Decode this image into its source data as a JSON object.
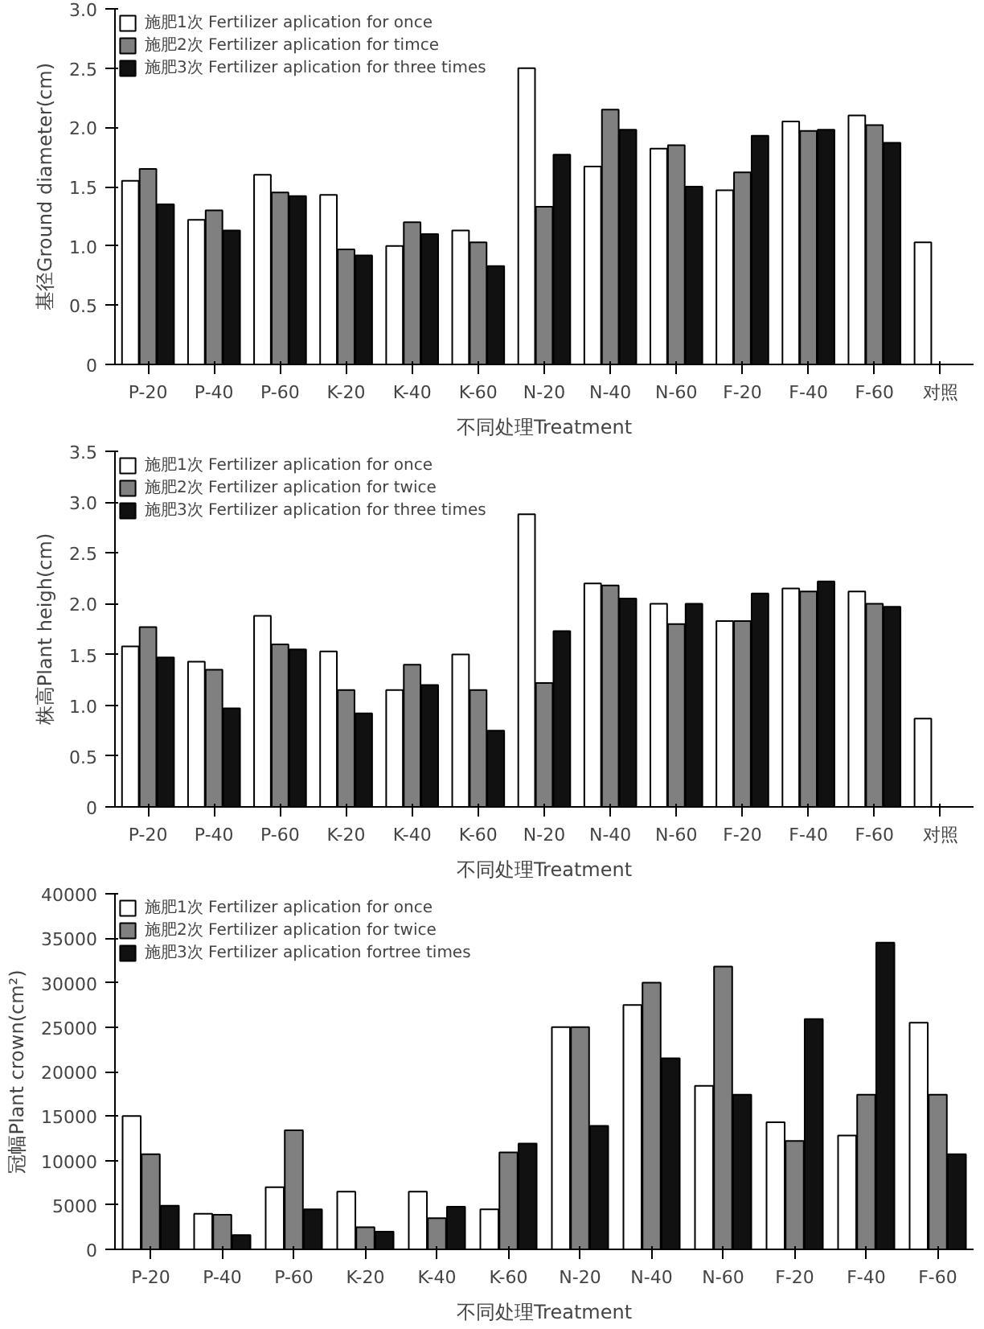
{
  "chart_data": [
    {
      "type": "bar",
      "ylabel": "基径Ground diameter(cm)",
      "xlabel": "不同处理Treatment",
      "categories": [
        "P-20",
        "P-40",
        "P-60",
        "K-20",
        "K-40",
        "K-60",
        "N-20",
        "N-40",
        "N-60",
        "F-20",
        "F-40",
        "F-60",
        "对照"
      ],
      "ylim": [
        0,
        3.0
      ],
      "yticks": [
        0,
        0.5,
        {
          "value": 1,
          "label": "1.0"
        },
        1.5,
        {
          "value": 2,
          "label": "2.0"
        },
        2.5,
        {
          "value": 3,
          "label": "3.0"
        }
      ],
      "grid": false,
      "legend": "top left",
      "series": [
        {
          "name": "施肥1次 Fertilizer aplication for once",
          "color": "#ffffff",
          "values": [
            1.55,
            1.22,
            1.6,
            1.43,
            1.0,
            1.13,
            2.5,
            1.67,
            1.82,
            1.47,
            2.05,
            2.1,
            1.03
          ]
        },
        {
          "name": "施肥2次 Fertilizer aplication for timce",
          "color": "#808080",
          "values": [
            1.65,
            1.3,
            1.45,
            0.97,
            1.2,
            1.03,
            1.33,
            2.15,
            1.85,
            1.62,
            1.97,
            2.02,
            null
          ]
        },
        {
          "name": "施肥3次 Fertilizer aplication for three times",
          "color": "#111111",
          "values": [
            1.35,
            1.13,
            1.42,
            0.92,
            1.1,
            0.83,
            1.77,
            1.98,
            1.5,
            1.93,
            1.98,
            1.87,
            null
          ]
        }
      ]
    },
    {
      "type": "bar",
      "ylabel": "株高Plant heigh(cm)",
      "xlabel": "不同处理Treatment",
      "categories": [
        "P-20",
        "P-40",
        "P-60",
        "K-20",
        "K-40",
        "K-60",
        "N-20",
        "N-40",
        "N-60",
        "F-20",
        "F-40",
        "F-60",
        "对照"
      ],
      "ylim": [
        0,
        3.5
      ],
      "yticks": [
        0,
        0.5,
        {
          "value": 1,
          "label": "1.0"
        },
        1.5,
        {
          "value": 2,
          "label": "2.0"
        },
        2.5,
        {
          "value": 3,
          "label": "3.0"
        },
        3.5
      ],
      "grid": false,
      "legend": "top left",
      "series": [
        {
          "name": "施肥1次 Fertilizer aplication for once",
          "color": "#ffffff",
          "values": [
            1.58,
            1.43,
            1.88,
            1.53,
            1.15,
            1.5,
            2.88,
            2.2,
            2.0,
            1.83,
            2.15,
            2.12,
            0.87
          ]
        },
        {
          "name": "施肥2次 Fertilizer aplication for twice",
          "color": "#808080",
          "values": [
            1.77,
            1.35,
            1.6,
            1.15,
            1.4,
            1.15,
            1.22,
            2.18,
            1.8,
            1.83,
            2.12,
            2.0,
            null
          ]
        },
        {
          "name": "施肥3次 Fertilizer aplication for three times",
          "color": "#111111",
          "values": [
            1.47,
            0.97,
            1.55,
            0.92,
            1.2,
            0.75,
            1.73,
            2.05,
            2.0,
            2.1,
            2.22,
            1.97,
            null
          ]
        }
      ]
    },
    {
      "type": "bar",
      "ylabel": "冠幅Plant crown(cm²)",
      "xlabel": "不同处理Treatment",
      "categories": [
        "P-20",
        "P-40",
        "P-60",
        "K-20",
        "K-40",
        "K-60",
        "N-20",
        "N-40",
        "N-60",
        "F-20",
        "F-40",
        "F-60"
      ],
      "ylim": [
        0,
        40000
      ],
      "yticks": [
        0,
        5000,
        10000,
        15000,
        20000,
        25000,
        30000,
        35000,
        40000
      ],
      "grid": false,
      "legend": "top left",
      "series": [
        {
          "name": "施肥1次 Fertilizer aplication for once",
          "color": "#ffffff",
          "values": [
            15000,
            4000,
            7000,
            6500,
            6500,
            4500,
            25000,
            27500,
            18400,
            14300,
            12800,
            25500
          ]
        },
        {
          "name": "施肥2次 Fertilizer aplication for twice",
          "color": "#808080",
          "values": [
            10700,
            3900,
            13400,
            2500,
            3500,
            10900,
            25000,
            30000,
            31800,
            12200,
            17400,
            17400
          ]
        },
        {
          "name": "施肥3次 Fertilizer aplication fortree times",
          "color": "#111111",
          "values": [
            4900,
            1600,
            4500,
            2000,
            4800,
            11900,
            13900,
            21500,
            17400,
            25900,
            34500,
            10700
          ]
        }
      ]
    }
  ]
}
